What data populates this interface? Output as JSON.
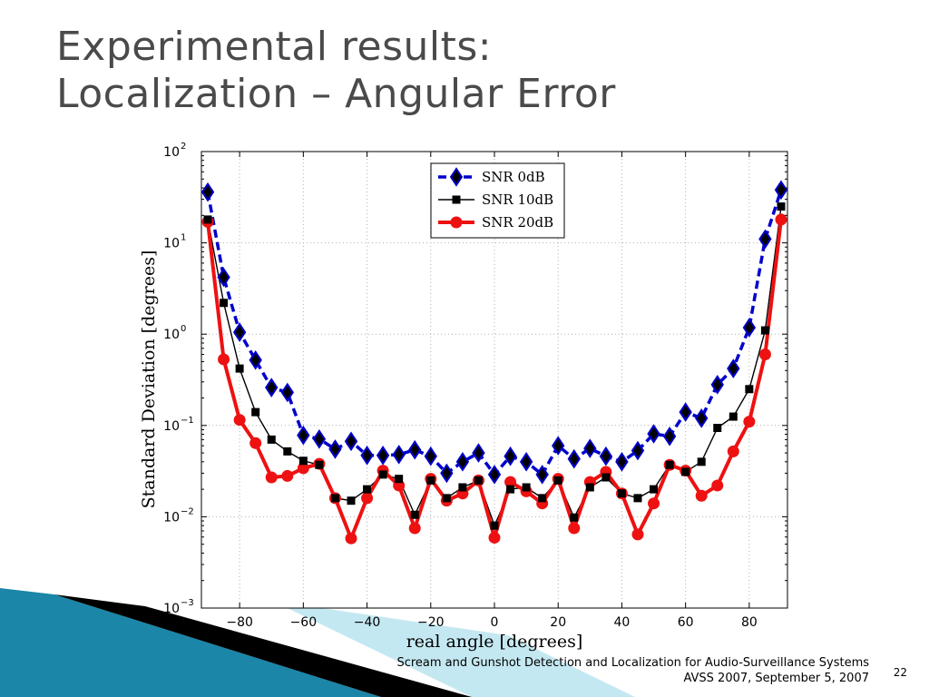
{
  "slide": {
    "title_line1": "Experimental results:",
    "title_line2": "Localization – Angular Error",
    "footer_line1": "Scream and Gunshot Detection and Localization for Audio-Surveillance Systems",
    "footer_line2": "AVSS 2007, September 5, 2007",
    "page_number": "22",
    "decoration_colors": [
      "#1b86a8",
      "#7ccce0",
      "#000000"
    ]
  },
  "chart_data": {
    "type": "line",
    "title": "",
    "xlabel": "real angle [degrees]",
    "ylabel": "Standard Deviation [degrees]",
    "xlim": [
      -92,
      92
    ],
    "ylim": [
      0.001,
      100
    ],
    "yscale": "log",
    "xticks": [
      -80,
      -60,
      -40,
      -20,
      0,
      20,
      40,
      60,
      80
    ],
    "xtick_labels": [
      "−80",
      "−60",
      "−40",
      "−20",
      "0",
      "20",
      "40",
      "60",
      "80"
    ],
    "yticks": [
      0.001,
      0.01,
      0.1,
      1,
      10,
      100
    ],
    "ytick_labels": [
      {
        "base": "10",
        "exp": "−3"
      },
      {
        "base": "10",
        "exp": "−2"
      },
      {
        "base": "10",
        "exp": "−1"
      },
      {
        "base": "10",
        "exp": "0"
      },
      {
        "base": "10",
        "exp": "1"
      },
      {
        "base": "10",
        "exp": "2"
      }
    ],
    "grid": true,
    "legend_position": "top-center",
    "x": [
      -90,
      -85,
      -80,
      -75,
      -70,
      -65,
      -60,
      -55,
      -50,
      -45,
      -40,
      -35,
      -30,
      -25,
      -20,
      -15,
      -10,
      -5,
      0,
      5,
      10,
      15,
      20,
      25,
      30,
      35,
      40,
      45,
      50,
      55,
      60,
      65,
      70,
      75,
      80,
      85,
      90
    ],
    "series": [
      {
        "name": "SNR 0dB",
        "color": "#0000cc",
        "marker": "diamond",
        "line_style": "dashed",
        "values": [
          36,
          4.2,
          1.05,
          0.52,
          0.26,
          0.23,
          0.078,
          0.071,
          0.055,
          0.067,
          0.047,
          0.047,
          0.048,
          0.054,
          0.046,
          0.03,
          0.04,
          0.05,
          0.029,
          0.046,
          0.04,
          0.029,
          0.06,
          0.043,
          0.056,
          0.046,
          0.04,
          0.053,
          0.081,
          0.076,
          0.14,
          0.12,
          0.28,
          0.42,
          1.18,
          11,
          38
        ]
      },
      {
        "name": "SNR 10dB",
        "color": "#000000",
        "marker": "square",
        "line_style": "solid",
        "values": [
          18,
          2.2,
          0.42,
          0.14,
          0.07,
          0.052,
          0.041,
          0.037,
          0.016,
          0.015,
          0.02,
          0.029,
          0.026,
          0.0105,
          0.025,
          0.016,
          0.021,
          0.025,
          0.008,
          0.02,
          0.021,
          0.016,
          0.025,
          0.0098,
          0.021,
          0.027,
          0.018,
          0.016,
          0.02,
          0.037,
          0.031,
          0.04,
          0.094,
          0.125,
          0.25,
          1.1,
          25
        ]
      },
      {
        "name": "SNR 20dB",
        "color": "#ee1111",
        "marker": "circle",
        "line_style": "solid",
        "values": [
          17,
          0.53,
          0.115,
          0.064,
          0.027,
          0.028,
          0.034,
          0.038,
          0.016,
          0.0058,
          0.016,
          0.032,
          0.022,
          0.0075,
          0.026,
          0.015,
          0.018,
          0.025,
          0.0059,
          0.024,
          0.019,
          0.014,
          0.026,
          0.0075,
          0.024,
          0.031,
          0.018,
          0.0064,
          0.014,
          0.037,
          0.032,
          0.017,
          0.022,
          0.052,
          0.11,
          0.6,
          18
        ]
      }
    ]
  }
}
